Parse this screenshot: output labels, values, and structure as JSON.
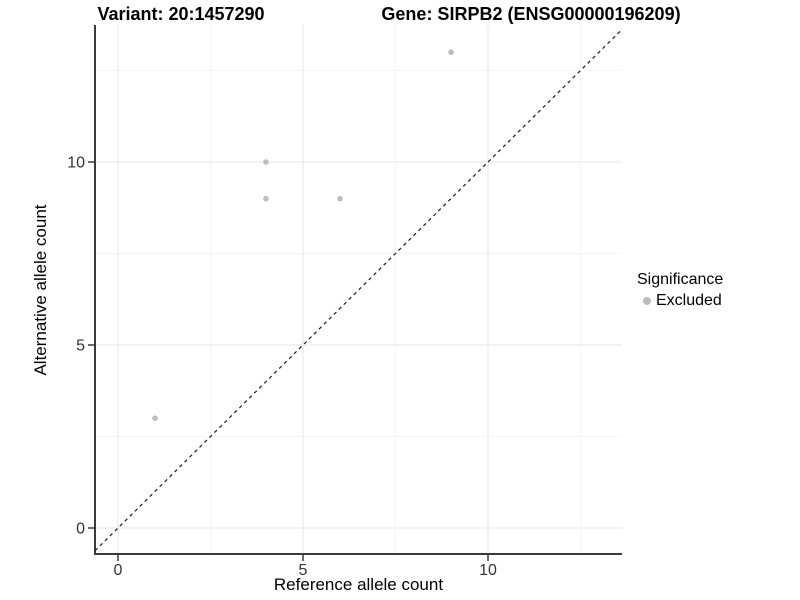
{
  "title": {
    "left": "Variant: 20:1457290",
    "right": "Gene: SIRPB2 (ENSG00000196209)"
  },
  "axes": {
    "x_label": "Reference allele count",
    "y_label": "Alternative allele count"
  },
  "legend": {
    "title": "Significance",
    "entries": [
      {
        "label": "Excluded",
        "color": "#bdbdbd"
      }
    ]
  },
  "chart_data": {
    "type": "scatter",
    "title": "Variant: 20:1457290 — Gene: SIRPB2 (ENSG00000196209)",
    "xlabel": "Reference allele count",
    "ylabel": "Alternative allele count",
    "series": [
      {
        "name": "Excluded",
        "color": "#bdbdbd",
        "points": [
          {
            "x": 1,
            "y": 3
          },
          {
            "x": 4,
            "y": 9
          },
          {
            "x": 4,
            "y": 10
          },
          {
            "x": 6,
            "y": 9
          },
          {
            "x": 9,
            "y": 13
          }
        ]
      }
    ],
    "reference_line": {
      "type": "identity",
      "style": "dashed",
      "color": "#1a1a1a"
    },
    "x_ticks": [
      0,
      5,
      10
    ],
    "y_ticks": [
      0,
      5,
      10
    ],
    "x_minor_ticks": [
      2.5,
      7.5,
      12.5
    ],
    "y_minor_ticks": [
      2.5,
      7.5,
      12.5
    ],
    "xlim": [
      -0.62,
      13.62
    ],
    "ylim": [
      -0.71,
      13.74
    ],
    "grid": true,
    "legend_position": "right"
  },
  "colors": {
    "point": "#bdbdbd",
    "grid_major": "#e9e9e9",
    "grid_minor": "#f4f4f4",
    "axis_line": "#3a3a3a",
    "tick_text": "#333333",
    "text": "#000000"
  }
}
